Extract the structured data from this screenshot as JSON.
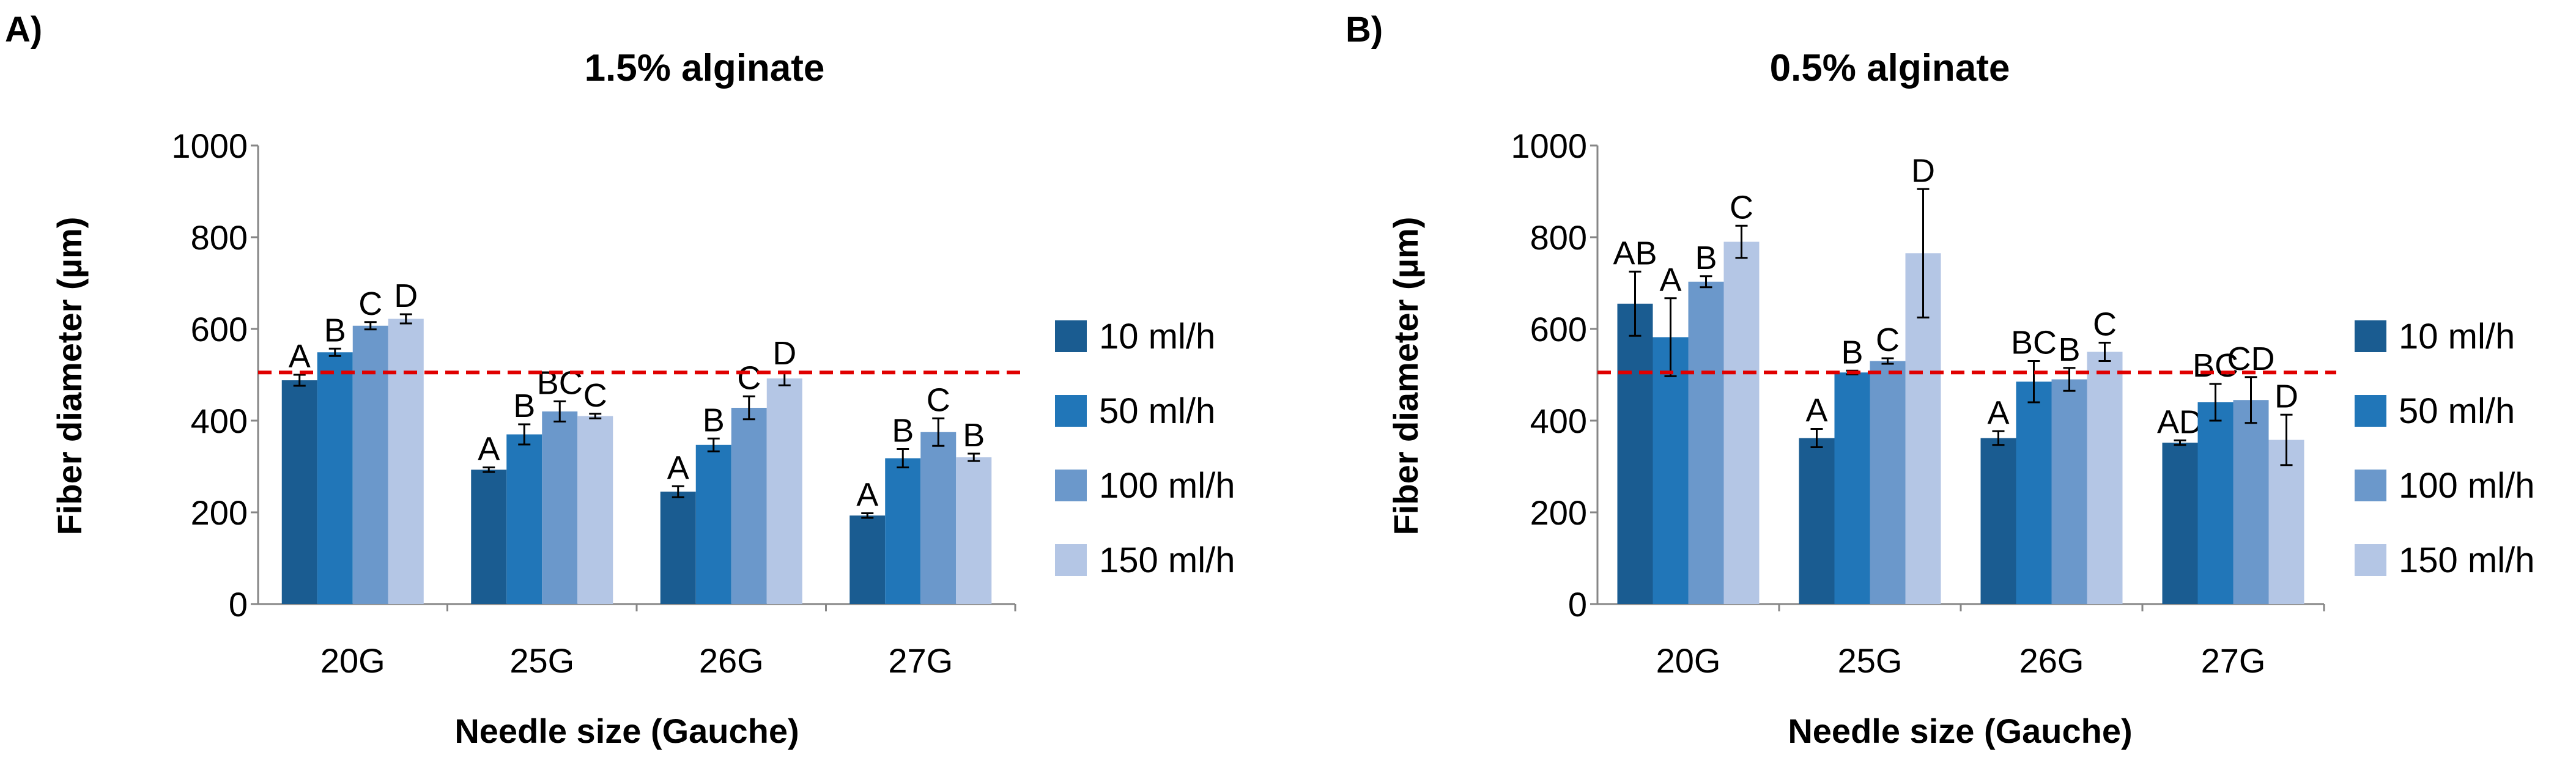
{
  "chart_data": [
    {
      "type": "bar",
      "panel_label": "A)",
      "title": "1.5% alginate",
      "xlabel": "Needle size (Gauche)",
      "ylabel": "Fiber diameter (µm)",
      "ylim": [
        0,
        1000
      ],
      "yticks": [
        "0",
        "200",
        "400",
        "600",
        "800",
        "1000"
      ],
      "categories": [
        "20G",
        "25G",
        "26G",
        "27G"
      ],
      "series": [
        {
          "name": "10 ml/h",
          "color": "#1a5c91",
          "values": [
            488,
            293,
            245,
            193
          ],
          "errors": [
            12,
            5,
            12,
            5
          ],
          "letters": [
            "A",
            "A",
            "A",
            "A"
          ]
        },
        {
          "name": "50 ml/h",
          "color": "#2176b8",
          "values": [
            549,
            370,
            347,
            318
          ],
          "errors": [
            8,
            22,
            14,
            20
          ],
          "letters": [
            "B",
            "B",
            "B",
            "B"
          ]
        },
        {
          "name": "100 ml/h",
          "color": "#6b98cb",
          "values": [
            607,
            420,
            428,
            375
          ],
          "errors": [
            8,
            22,
            25,
            30
          ],
          "letters": [
            "C",
            "BC",
            "C",
            "C"
          ]
        },
        {
          "name": "150 ml/h",
          "color": "#b4c6e5",
          "values": [
            622,
            410,
            492,
            320
          ],
          "errors": [
            10,
            5,
            15,
            8
          ],
          "letters": [
            "D",
            "C",
            "D",
            "B"
          ]
        }
      ],
      "reference_line": 505,
      "reference_color": "#e00000",
      "legend_position": "right",
      "grid": false
    },
    {
      "type": "bar",
      "panel_label": "B)",
      "title": "0.5% alginate",
      "xlabel": "Needle size (Gauche)",
      "ylabel": "Fiber diameter (µm)",
      "ylim": [
        0,
        1000
      ],
      "yticks": [
        "0",
        "200",
        "400",
        "600",
        "800",
        "1000"
      ],
      "categories": [
        "20G",
        "25G",
        "26G",
        "27G"
      ],
      "series": [
        {
          "name": "10 ml/h",
          "color": "#1a5c91",
          "values": [
            655,
            362,
            362,
            352
          ],
          "errors": [
            70,
            20,
            15,
            5
          ],
          "letters": [
            "AB",
            "A",
            "A",
            "AD"
          ]
        },
        {
          "name": "50 ml/h",
          "color": "#2176b8",
          "values": [
            582,
            505,
            485,
            440
          ],
          "errors": [
            85,
            4,
            45,
            40
          ],
          "letters": [
            "A",
            "B",
            "BC",
            "BC"
          ]
        },
        {
          "name": "100 ml/h",
          "color": "#6b98cb",
          "values": [
            703,
            530,
            490,
            445
          ],
          "errors": [
            12,
            6,
            25,
            50
          ],
          "letters": [
            "B",
            "C",
            "B",
            "CD"
          ]
        },
        {
          "name": "150 ml/h",
          "color": "#b4c6e5",
          "values": [
            790,
            765,
            550,
            358
          ],
          "errors": [
            35,
            140,
            20,
            55
          ],
          "letters": [
            "C",
            "D",
            "C",
            "D"
          ]
        }
      ],
      "reference_line": 505,
      "reference_color": "#e00000",
      "legend_position": "right",
      "grid": false
    }
  ]
}
